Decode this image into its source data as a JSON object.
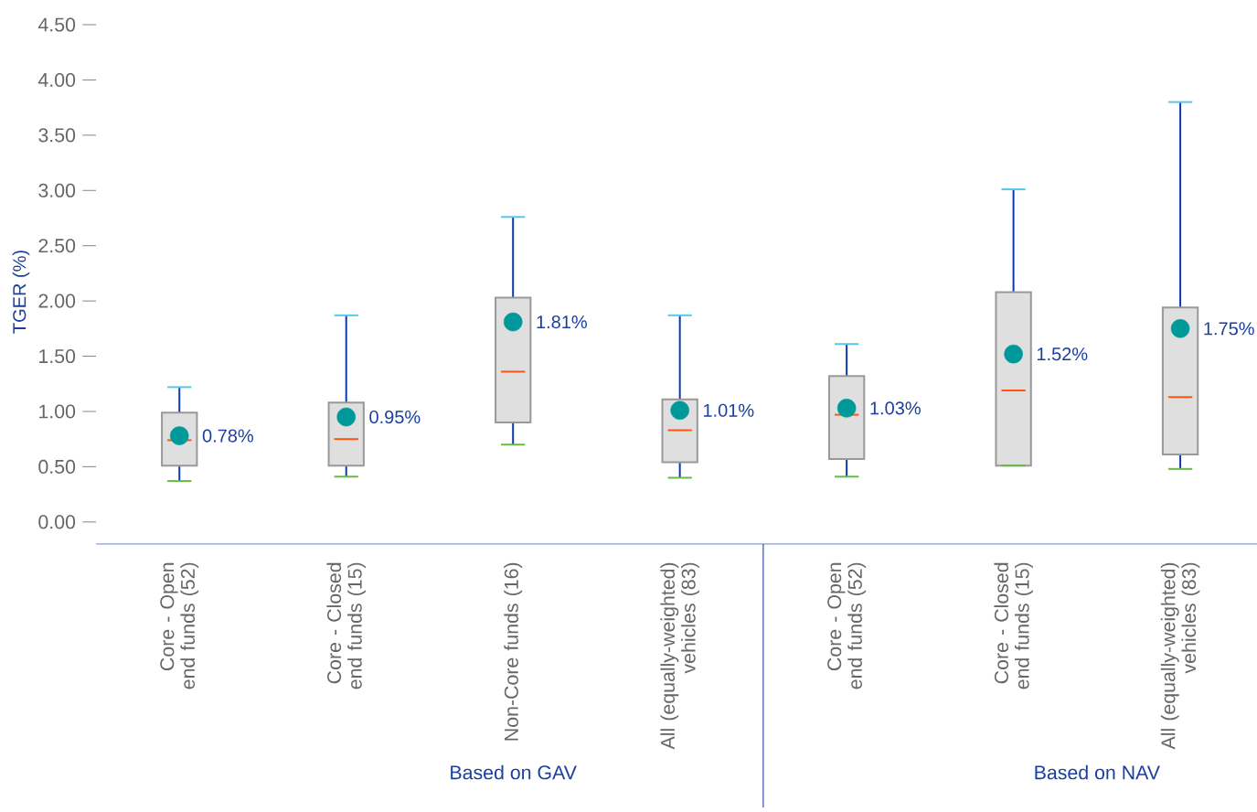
{
  "chart_data": {
    "type": "box",
    "ylabel": "TGER (%)",
    "categories": [
      "Core - Open end funds (52)",
      "Core - Closed end funds (15)",
      "Non-Core funds (16)",
      "All (equally-weighted) vehicles (83)",
      "Core - Open end funds (52)",
      "Core - Closed end funds (15)",
      "All (equally-weighted) vehicles (83)"
    ],
    "boxes": [
      {
        "low": 0.37,
        "q1": 0.51,
        "median": 0.74,
        "q3": 0.99,
        "high": 1.22,
        "mean": 0.78
      },
      {
        "low": 0.41,
        "q1": 0.51,
        "median": 0.75,
        "q3": 1.08,
        "high": 1.87,
        "mean": 0.95
      },
      {
        "low": 0.7,
        "q1": 0.9,
        "median": 1.36,
        "q3": 2.03,
        "high": 2.76,
        "mean": 1.81
      },
      {
        "low": 0.4,
        "q1": 0.54,
        "median": 0.83,
        "q3": 1.11,
        "high": 1.87,
        "mean": 1.01
      },
      {
        "low": 0.41,
        "q1": 0.57,
        "median": 0.97,
        "q3": 1.32,
        "high": 1.61,
        "mean": 1.03
      },
      {
        "low": 0.51,
        "q1": 0.51,
        "median": 1.19,
        "q3": 2.08,
        "high": 3.01,
        "mean": 1.52
      },
      {
        "low": 0.48,
        "q1": 0.61,
        "median": 1.13,
        "q3": 1.94,
        "high": 3.8,
        "mean": 1.75
      }
    ],
    "value_labels": [
      "0.78%",
      "0.95%",
      "1.81%",
      "1.01%",
      "1.03%",
      "1.52%",
      "1.75%"
    ],
    "marker": "circle",
    "ylim": [
      -0.2,
      4.5
    ],
    "yticks": [
      {
        "value": 0,
        "label": "0.00"
      },
      {
        "value": 0.5,
        "label": "0.50"
      },
      {
        "value": 1,
        "label": "1.00"
      },
      {
        "value": 1.5,
        "label": "1.50"
      },
      {
        "value": 2,
        "label": "2.00"
      },
      {
        "value": 2.5,
        "label": "2.50"
      },
      {
        "value": 3,
        "label": "3.00"
      },
      {
        "value": 3.5,
        "label": "3.50"
      },
      {
        "value": 4,
        "label": "4.00"
      },
      {
        "value": 4.5,
        "label": "4.50"
      }
    ],
    "annotations": [
      "Based on GAV",
      "Based on NAV"
    ]
  }
}
